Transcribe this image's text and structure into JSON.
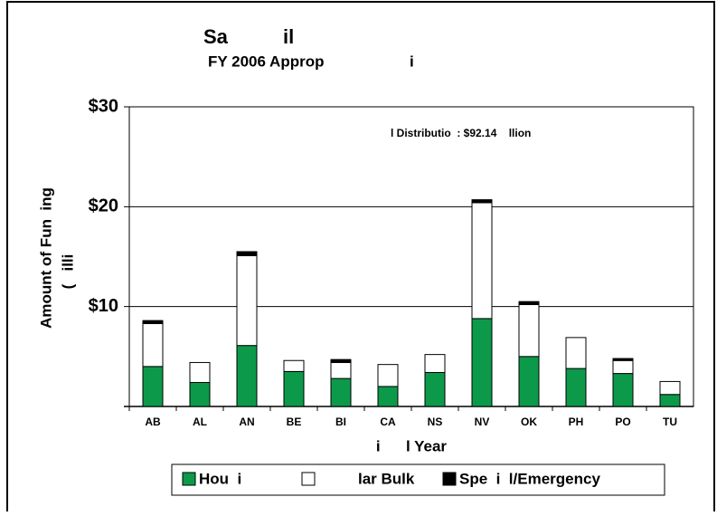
{
  "chart_data": {
    "type": "stacked_bar",
    "title": "Sa          il",
    "subtitle": "FY 2006 Approp                    i",
    "annotation": "l Distributio  : $92.14    llion",
    "y_label": "Amount of Fun  ing",
    "y_label2": "(   illi",
    "x_label": "i      l Year",
    "categories": [
      "AB",
      "AL",
      "AN",
      "BE",
      "BI",
      "CA",
      "NS",
      "NV",
      "OK",
      "PH",
      "PO",
      "TU"
    ],
    "series": [
      {
        "name": "Hou  i",
        "color": "#0c9a4a",
        "values": [
          4.0,
          2.4,
          6.1,
          3.5,
          2.8,
          2.0,
          3.4,
          8.8,
          5.0,
          3.8,
          3.3,
          1.2
        ]
      },
      {
        "name": "lar Bulk",
        "color": "#ffffff",
        "values": [
          4.3,
          2.0,
          9.0,
          1.1,
          1.6,
          2.2,
          1.8,
          11.6,
          5.2,
          3.1,
          1.3,
          1.3
        ]
      },
      {
        "name": "Spe  i  l/Emergency",
        "color": "#000000",
        "values": [
          0.3,
          0,
          0.4,
          0,
          0.3,
          0,
          0,
          0.3,
          0.3,
          0,
          0.2,
          0
        ]
      }
    ],
    "ylim": [
      0,
      30
    ],
    "yticks": [
      {
        "value": 10,
        "label": "$10"
      },
      {
        "value": 20,
        "label": "$20"
      },
      {
        "value": 30,
        "label": "$30"
      }
    ],
    "grid": true
  }
}
